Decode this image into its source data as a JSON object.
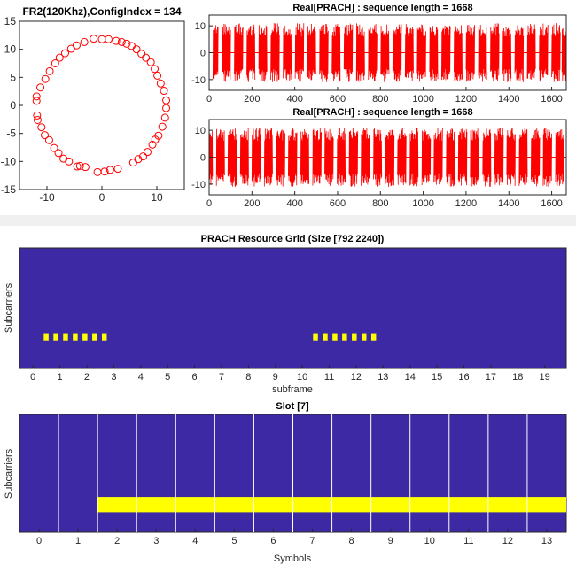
{
  "colors": {
    "constellation": "#ff0000",
    "waveform": "#ff0000",
    "grid_background": "#3c29a3",
    "grid_active": "#ffff00",
    "symbol_divider": "#ffffff",
    "axis": "#262626",
    "separator": "#f0f0f0"
  },
  "chart_data": [
    {
      "id": "constellation",
      "type": "scatter",
      "title": "FR2(120Khz),ConfigIndex = 134",
      "xlim": [
        -15,
        15
      ],
      "ylim": [
        -15,
        15
      ],
      "xticks": [
        -10,
        0,
        10
      ],
      "yticks": [
        -15,
        -10,
        -5,
        0,
        5,
        10,
        15
      ],
      "marker": "circle",
      "points": [
        [
          0.0,
          11.8
        ],
        [
          1.2,
          11.8
        ],
        [
          2.6,
          11.5
        ],
        [
          3.6,
          11.3
        ],
        [
          4.5,
          11.0
        ],
        [
          5.4,
          10.6
        ],
        [
          6.3,
          10.0
        ],
        [
          7.2,
          9.2
        ],
        [
          8.0,
          8.5
        ],
        [
          8.9,
          7.7
        ],
        [
          9.6,
          6.5
        ],
        [
          10.1,
          5.3
        ],
        [
          10.7,
          3.9
        ],
        [
          11.3,
          2.6
        ],
        [
          11.7,
          0.9
        ],
        [
          11.7,
          -0.5
        ],
        [
          11.5,
          -2.2
        ],
        [
          11.0,
          -3.8
        ],
        [
          10.3,
          -5.4
        ],
        [
          9.7,
          -6.1
        ],
        [
          9.2,
          -7.0
        ],
        [
          8.3,
          -8.3
        ],
        [
          7.5,
          -9.1
        ],
        [
          6.6,
          -9.6
        ],
        [
          5.7,
          -10.2
        ],
        [
          2.9,
          -11.3
        ],
        [
          1.5,
          -11.5
        ],
        [
          0.5,
          -11.8
        ],
        [
          -0.8,
          -11.9
        ],
        [
          -3.0,
          -11.0
        ],
        [
          -4.0,
          -10.8
        ],
        [
          -4.5,
          -10.9
        ],
        [
          -6.0,
          -10.0
        ],
        [
          -7.0,
          -9.5
        ],
        [
          -7.9,
          -8.5
        ],
        [
          -8.7,
          -7.6
        ],
        [
          -9.6,
          -6.2
        ],
        [
          -10.4,
          -5.3
        ],
        [
          -11.0,
          -3.9
        ],
        [
          -11.7,
          -2.6
        ],
        [
          -11.8,
          -1.8
        ],
        [
          -11.9,
          0.8
        ],
        [
          -11.9,
          1.6
        ],
        [
          -11.2,
          3.2
        ],
        [
          -10.3,
          4.7
        ],
        [
          -9.5,
          6.1
        ],
        [
          -8.5,
          7.5
        ],
        [
          -7.7,
          8.5
        ],
        [
          -6.7,
          9.3
        ],
        [
          -5.6,
          10.1
        ],
        [
          -4.6,
          10.7
        ],
        [
          -3.2,
          11.3
        ],
        [
          -1.5,
          11.9
        ]
      ]
    },
    {
      "id": "waveform-1",
      "type": "line",
      "title": "Real[PRACH] : sequence length = 1668",
      "xlim": [
        0,
        1668
      ],
      "ylim": [
        -14,
        14
      ],
      "xticks": [
        0,
        200,
        400,
        600,
        800,
        1000,
        1200,
        1400,
        1600
      ],
      "yticks": [
        -10,
        0,
        10
      ],
      "segments": [
        [
          18,
          42
        ],
        [
          60,
          100
        ],
        [
          118,
          158
        ],
        [
          176,
          214
        ],
        [
          232,
          270
        ],
        [
          288,
          328
        ],
        [
          346,
          384
        ],
        [
          402,
          442
        ],
        [
          460,
          498
        ],
        [
          516,
          556
        ],
        [
          574,
          612
        ],
        [
          630,
          670
        ],
        [
          688,
          726
        ],
        [
          744,
          784
        ],
        [
          802,
          840
        ],
        [
          858,
          898
        ],
        [
          916,
          954
        ],
        [
          972,
          1012
        ],
        [
          1030,
          1068
        ],
        [
          1086,
          1126
        ],
        [
          1144,
          1182
        ],
        [
          1200,
          1240
        ],
        [
          1258,
          1296
        ],
        [
          1314,
          1354
        ],
        [
          1372,
          1410
        ],
        [
          1428,
          1468
        ],
        [
          1486,
          1524
        ],
        [
          1542,
          1582
        ],
        [
          1600,
          1640
        ],
        [
          1648,
          1668
        ]
      ],
      "amplitude": 11
    },
    {
      "id": "waveform-2",
      "type": "line",
      "title": "Real[PRACH] : sequence length = 1668",
      "xlim": [
        0,
        1668
      ],
      "ylim": [
        -14,
        14
      ],
      "xticks": [
        0,
        200,
        400,
        600,
        800,
        1000,
        1200,
        1400,
        1600
      ],
      "yticks": [
        -10,
        0,
        10
      ],
      "segments": [
        [
          0,
          16
        ],
        [
          34,
          72
        ],
        [
          88,
          128
        ],
        [
          146,
          184
        ],
        [
          200,
          240
        ],
        [
          258,
          296
        ],
        [
          314,
          354
        ],
        [
          370,
          410
        ],
        [
          428,
          466
        ],
        [
          484,
          524
        ],
        [
          540,
          580
        ],
        [
          598,
          636
        ],
        [
          654,
          694
        ],
        [
          710,
          750
        ],
        [
          768,
          806
        ],
        [
          824,
          864
        ],
        [
          880,
          920
        ],
        [
          938,
          976
        ],
        [
          994,
          1034
        ],
        [
          1050,
          1090
        ],
        [
          1108,
          1146
        ],
        [
          1164,
          1204
        ],
        [
          1220,
          1260
        ],
        [
          1278,
          1316
        ],
        [
          1334,
          1374
        ],
        [
          1390,
          1430
        ],
        [
          1448,
          1486
        ],
        [
          1504,
          1544
        ],
        [
          1560,
          1600
        ],
        [
          1618,
          1656
        ]
      ],
      "amplitude": 11
    },
    {
      "id": "resource-grid",
      "type": "heatmap",
      "title": "PRACH Resource Grid (Size [792 2240])",
      "xlabel": "subframe",
      "ylabel": "Subcarriers",
      "xlim": [
        -0.5,
        19.8
      ],
      "xticks": [
        0,
        1,
        2,
        3,
        4,
        5,
        6,
        7,
        8,
        9,
        10,
        11,
        12,
        13,
        14,
        15,
        16,
        17,
        18,
        19
      ],
      "active_blocks": [
        0.4,
        0.76,
        1.12,
        1.48,
        1.84,
        2.2,
        2.56,
        10.4,
        10.76,
        11.12,
        11.48,
        11.84,
        12.2,
        12.56
      ],
      "block_width_subframes": 0.18,
      "active_band": [
        0.23,
        0.29
      ]
    },
    {
      "id": "slot",
      "type": "heatmap",
      "title": "Slot [7]",
      "xlabel": "Symbols",
      "ylabel": "Subcarriers",
      "xlim": [
        -0.5,
        13.5
      ],
      "xticks": [
        0,
        1,
        2,
        3,
        4,
        5,
        6,
        7,
        8,
        9,
        10,
        11,
        12,
        13
      ],
      "symbol_boundaries": [
        0.5,
        1.5,
        2.5,
        3.5,
        4.5,
        5.5,
        6.5,
        7.5,
        8.5,
        9.5,
        10.5,
        11.5,
        12.5
      ],
      "active_symbols": [
        1.5,
        13.5
      ],
      "active_band": [
        0.17,
        0.3
      ]
    }
  ]
}
